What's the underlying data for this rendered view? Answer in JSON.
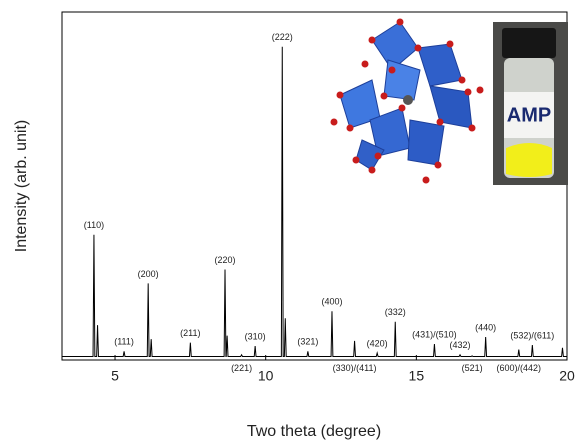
{
  "chart_data": {
    "type": "line",
    "x_label": "Two theta (degree)",
    "y_label": "Intensity (arb. unit)",
    "xlim": [
      3.24,
      20
    ],
    "xticks": [
      5,
      10,
      15,
      20
    ],
    "ylim": [
      0,
      100
    ],
    "color": "#000000",
    "x": [
      3.24,
      4.27,
      4.3,
      4.33,
      4.39,
      4.42,
      4.45,
      5.27,
      5.3,
      5.33,
      6.07,
      6.1,
      6.13,
      6.17,
      6.2,
      6.23,
      7.47,
      7.5,
      7.53,
      8.62,
      8.65,
      8.68,
      8.69,
      8.72,
      8.75,
      9.17,
      9.2,
      9.23,
      9.62,
      9.65,
      9.68,
      10.52,
      10.55,
      10.58,
      10.62,
      10.65,
      10.68,
      11.37,
      11.4,
      11.43,
      12.17,
      12.2,
      12.23,
      12.92,
      12.95,
      12.98,
      13.67,
      13.7,
      13.73,
      14.27,
      14.3,
      14.33,
      15.57,
      15.6,
      15.63,
      16.42,
      16.45,
      16.48,
      16.82,
      16.85,
      16.88,
      17.27,
      17.3,
      17.33,
      18.37,
      18.4,
      18.43,
      18.82,
      18.85,
      18.88,
      19.82,
      19.85,
      19.88,
      20
    ],
    "values": [
      1,
      1,
      36,
      1,
      1,
      10,
      1,
      1,
      2.5,
      1,
      1,
      22,
      1,
      1,
      6,
      1,
      1,
      5,
      1,
      1,
      26,
      1,
      1,
      7,
      1,
      1,
      1.5,
      1,
      1,
      4,
      1,
      1,
      90,
      1,
      1,
      12,
      1,
      1,
      2.5,
      1,
      1,
      14,
      1,
      1,
      5.5,
      1,
      1,
      2,
      1,
      1,
      11,
      1,
      1,
      4.6,
      1,
      1,
      1.5,
      1,
      1,
      1.2,
      1,
      1,
      6.6,
      1,
      1,
      3,
      1,
      1,
      4.3,
      1,
      1,
      3.5,
      1,
      1
    ],
    "annotations": [
      {
        "text": "(110)",
        "x": 4.3
      },
      {
        "text": "(111)",
        "x": 5.3
      },
      {
        "text": "(200)",
        "x": 6.1
      },
      {
        "text": "(211)",
        "x": 7.5
      },
      {
        "text": "(220)",
        "x": 8.65
      },
      {
        "text": "(221)",
        "x": 9.2
      },
      {
        "text": "(310)",
        "x": 9.65
      },
      {
        "text": "(222)",
        "x": 10.55
      },
      {
        "text": "(321)",
        "x": 11.4
      },
      {
        "text": "(400)",
        "x": 12.2
      },
      {
        "text": "(330)/(411)",
        "x": 12.95
      },
      {
        "text": "(420)",
        "x": 13.7
      },
      {
        "text": "(332)",
        "x": 14.3
      },
      {
        "text": "(431)/(510)",
        "x": 15.6
      },
      {
        "text": "(432)",
        "x": 16.45
      },
      {
        "text": "(521)",
        "x": 16.85
      },
      {
        "text": "(440)",
        "x": 17.3
      },
      {
        "text": "(600)/(442)",
        "x": 18.4
      },
      {
        "text": "(532)/(611)",
        "x": 18.85
      }
    ],
    "vial_label": "AMP"
  }
}
